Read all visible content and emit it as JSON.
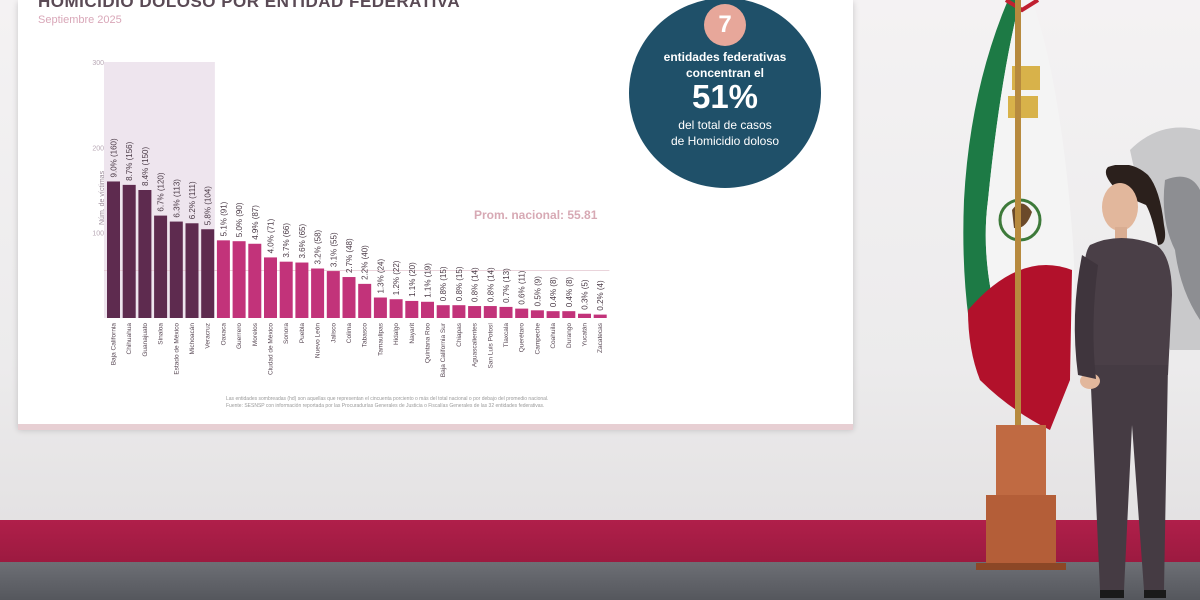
{
  "slide": {
    "title": "HOMICIDIO DOLOSO POR ENTIDAD FEDERATIVA",
    "subtitle": "Septiembre 2025",
    "highlight": {
      "number": "7",
      "line1": "entidades federativas",
      "line2": "concentran el",
      "percent": "51%",
      "line3": "del total de casos",
      "line4": "de Homicidio doloso"
    },
    "average_label": "Prom. nacional: 55.81",
    "footnote1": "Las entidades sombreadas (hd) son aquellas que representan el cincuenta porciento o más del total nacional o por debajo del promedio nacional.",
    "footnote2": "Fuente: SESNSP con información reportada por las Procuradurías Generales de Justicia o Fiscalías Generales de las 32 entidades federativas."
  },
  "colors": {
    "highlight_bar": "#5e2b4f",
    "regular_bar": "#c2337a",
    "shade": "#eee5ee",
    "circle_bg": "#1f5069",
    "circle_badge": "#e7a79a",
    "wall_stripe": "#b01f4a"
  },
  "chart_data": {
    "type": "bar",
    "title": "HOMICIDIO DOLOSO POR ENTIDAD FEDERATIVA",
    "subtitle": "Septiembre 2025",
    "ylabel": "Núm. de víctimas",
    "ylim": [
      0,
      300
    ],
    "yticks": [
      100,
      200,
      300
    ],
    "grid": false,
    "categories": [
      "Baja California",
      "Chihuahua",
      "Guanajuato",
      "Sinaloa",
      "Estado de México",
      "Michoacán",
      "Veracruz",
      "Oaxaca",
      "Guerrero",
      "Morelos",
      "Ciudad de México",
      "Sonora",
      "Puebla",
      "Nuevo León",
      "Jalisco",
      "Colima",
      "Tabasco",
      "Tamaulipas",
      "Hidalgo",
      "Nayarit",
      "Quintana Roo",
      "Baja California Sur",
      "Chiapas",
      "Aguascalientes",
      "San Luis Potosí",
      "Tlaxcala",
      "Querétaro",
      "Campeche",
      "Coahuila",
      "Durango",
      "Yucatán",
      "Zacatecas"
    ],
    "values": [
      160,
      156,
      150,
      120,
      113,
      111,
      104,
      91,
      90,
      87,
      71,
      66,
      65,
      58,
      55,
      48,
      40,
      24,
      22,
      20,
      19,
      15,
      15,
      14,
      14,
      13,
      11,
      9,
      8,
      8,
      5,
      4
    ],
    "labels": [
      "9.0% (160)",
      "8.7% (156)",
      "8.4% (150)",
      "6.7% (120)",
      "6.3% (113)",
      "6.2% (111)",
      "5.8% (104)",
      "5.1% (91)",
      "5.0% (90)",
      "4.9% (87)",
      "4.0% (71)",
      "3.7% (66)",
      "3.6% (65)",
      "3.2% (58)",
      "3.1% (55)",
      "2.7% (48)",
      "2.2% (40)",
      "1.3% (24)",
      "1.2% (22)",
      "1.1% (20)",
      "1.1% (19)",
      "0.8% (15)",
      "0.8% (15)",
      "0.8% (14)",
      "0.8% (14)",
      "0.7% (13)",
      "0.6% (11)",
      "0.5% (9)",
      "0.4% (8)",
      "0.4% (8)",
      "0.3% (5)",
      "0.2% (4)"
    ],
    "highlighted_count": 7,
    "average": 55.81
  }
}
